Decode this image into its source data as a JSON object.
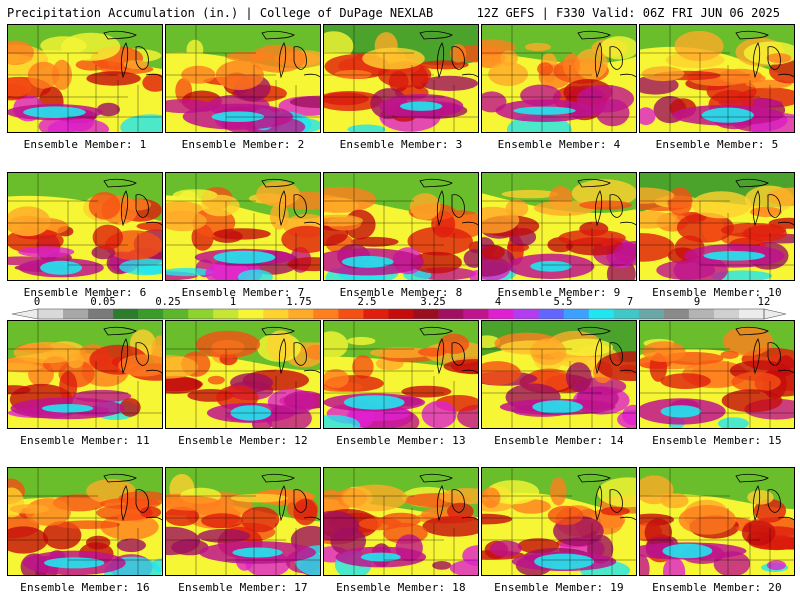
{
  "header": {
    "title_left": "Precipitation Accumulation (in.) | College of DuPage NEXLAB",
    "title_right": "12Z GEFS | F330 Valid: 06Z FRI JUN 06 2025"
  },
  "colorbar": {
    "tick_labels": [
      "0",
      "0.05",
      "0.25",
      "1",
      "1.75",
      "2.5",
      "3.25",
      "4",
      "5.5",
      "7",
      "9",
      "12"
    ],
    "colors": [
      "#d9d9d9",
      "#a8a8a8",
      "#7a7a7a",
      "#2b7d2b",
      "#3a9a2a",
      "#5cb82a",
      "#8fd32e",
      "#c6e636",
      "#f6f635",
      "#ffd230",
      "#ffaa28",
      "#ff7e1e",
      "#f55014",
      "#e01e0e",
      "#c40c0c",
      "#9a0f20",
      "#a01060",
      "#c0138e",
      "#e020d0",
      "#b43cf0",
      "#6464ff",
      "#3ca0ff",
      "#20e6f0",
      "#40c8c8",
      "#6aa8a8",
      "#8a8a8a",
      "#b4b4b4",
      "#d0d0d0",
      "#ececec"
    ]
  },
  "panels": [
    {
      "label": "Ensemble Member: 1"
    },
    {
      "label": "Ensemble Member: 2"
    },
    {
      "label": "Ensemble Member: 3"
    },
    {
      "label": "Ensemble Member: 4"
    },
    {
      "label": "Ensemble Member: 5"
    },
    {
      "label": "Ensemble Member: 6"
    },
    {
      "label": "Ensemble Member: 7"
    },
    {
      "label": "Ensemble Member: 8"
    },
    {
      "label": "Ensemble Member: 9"
    },
    {
      "label": "Ensemble Member: 10"
    },
    {
      "label": "Ensemble Member: 11"
    },
    {
      "label": "Ensemble Member: 12"
    },
    {
      "label": "Ensemble Member: 13"
    },
    {
      "label": "Ensemble Member: 14"
    },
    {
      "label": "Ensemble Member: 15"
    },
    {
      "label": "Ensemble Member: 16"
    },
    {
      "label": "Ensemble Member: 17"
    },
    {
      "label": "Ensemble Member: 18"
    },
    {
      "label": "Ensemble Member: 19"
    },
    {
      "label": "Ensemble Member: 20"
    }
  ]
}
